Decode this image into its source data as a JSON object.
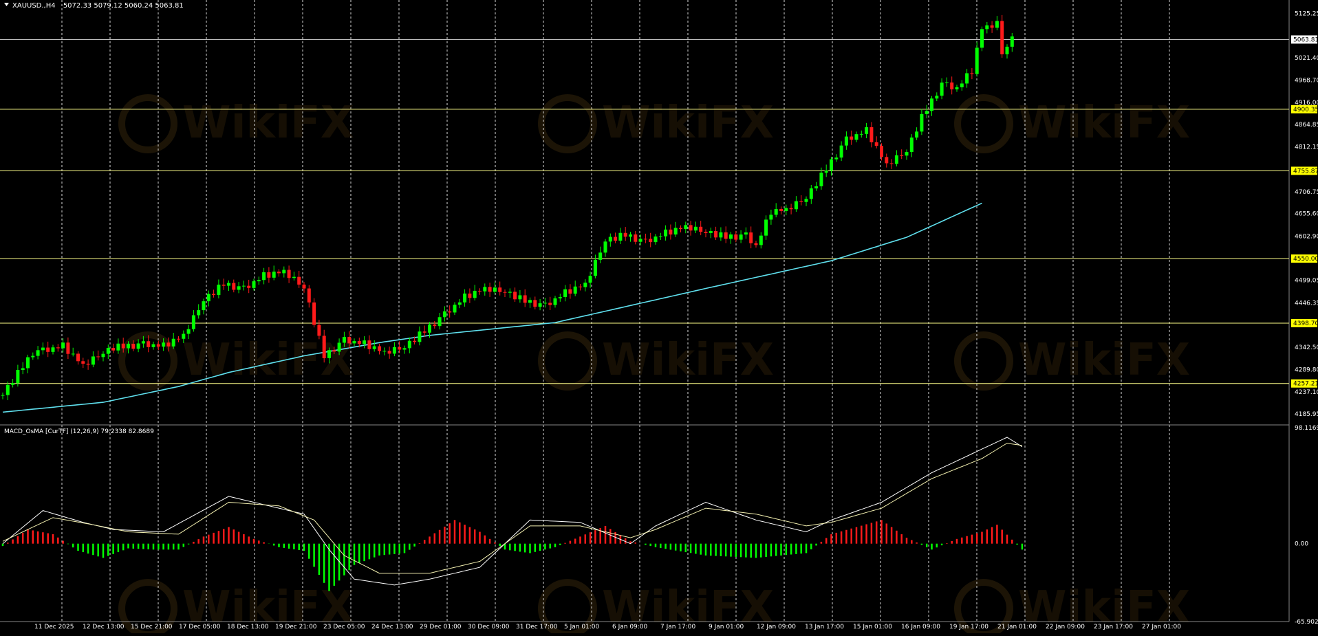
{
  "header": {
    "symbol": "XAUUSD.,H4",
    "ohlc": "5072.33 5079.12 5060.24 5063.81"
  },
  "indicator": {
    "label": "MACD_OsMA [CurTF] (12,26,9) 79.2338 82.8689"
  },
  "watermark_text": "WikiFX",
  "colors": {
    "background": "#000000",
    "bull": "#00ff00",
    "bear": "#ff1a1a",
    "ma": "#5fe0ee",
    "level": "#ffff8a",
    "level_label_bg": "#ffff00",
    "grid": "#d8d8d8",
    "macd_line": "#ffffff",
    "signal_line": "#f3f0b0"
  },
  "chart_data": [
    {
      "type": "candlestick",
      "symbol": "XAUUSD.",
      "timeframe": "H4",
      "last_price": 5063.81,
      "ylim": [
        4160,
        5150
      ],
      "y_ticks": [
        "5125.25",
        "5021.40",
        "4968.70",
        "4916.00",
        "4864.85",
        "4812.15",
        "4706.75",
        "4655.60",
        "4602.90",
        "4499.05",
        "4446.35",
        "4342.50",
        "4289.80",
        "4237.10",
        "4185.95"
      ],
      "price_label": "5063.81",
      "levels": [
        "4900.35",
        "4755.87",
        "4550.00",
        "4398.70",
        "4257.21"
      ],
      "x_labels": [
        "11 Dec 2025",
        "12 Dec 13:00",
        "15 Dec 21:00",
        "17 Dec 05:00",
        "18 Dec 13:00",
        "19 Dec 21:00",
        "23 Dec 05:00",
        "24 Dec 13:00",
        "29 Dec 01:00",
        "30 Dec 09:00",
        "31 Dec 17:00",
        "5 Jan 01:00",
        "6 Jan 09:00",
        "7 Jan 17:00",
        "9 Jan 01:00",
        "12 Jan 09:00",
        "13 Jan 17:00",
        "15 Jan 01:00",
        "16 Jan 09:00",
        "19 Jan 17:00",
        "21 Jan 01:00",
        "22 Jan 09:00",
        "23 Jan 17:00",
        "27 Jan 01:00"
      ],
      "ma_points": [
        [
          0,
          4190
        ],
        [
          20,
          4213
        ],
        [
          35,
          4250
        ],
        [
          45,
          4283
        ],
        [
          60,
          4322
        ],
        [
          75,
          4353
        ],
        [
          85,
          4370
        ],
        [
          110,
          4400
        ],
        [
          140,
          4480
        ],
        [
          165,
          4545
        ],
        [
          180,
          4600
        ],
        [
          195,
          4680
        ]
      ],
      "close_path": [
        [
          0,
          4230
        ],
        [
          6,
          4330
        ],
        [
          12,
          4345
        ],
        [
          16,
          4300
        ],
        [
          22,
          4340
        ],
        [
          28,
          4350
        ],
        [
          32,
          4345
        ],
        [
          36,
          4370
        ],
        [
          40,
          4450
        ],
        [
          44,
          4490
        ],
        [
          48,
          4480
        ],
        [
          52,
          4510
        ],
        [
          56,
          4520
        ],
        [
          60,
          4480
        ],
        [
          64,
          4320
        ],
        [
          68,
          4360
        ],
        [
          72,
          4350
        ],
        [
          76,
          4330
        ],
        [
          80,
          4340
        ],
        [
          84,
          4380
        ],
        [
          88,
          4420
        ],
        [
          92,
          4460
        ],
        [
          96,
          4480
        ],
        [
          100,
          4470
        ],
        [
          104,
          4450
        ],
        [
          108,
          4440
        ],
        [
          112,
          4470
        ],
        [
          116,
          4490
        ],
        [
          120,
          4590
        ],
        [
          124,
          4605
        ],
        [
          128,
          4590
        ],
        [
          132,
          4610
        ],
        [
          136,
          4625
        ],
        [
          140,
          4610
        ],
        [
          144,
          4600
        ],
        [
          148,
          4605
        ],
        [
          150,
          4580
        ],
        [
          153,
          4660
        ],
        [
          156,
          4665
        ],
        [
          160,
          4690
        ],
        [
          164,
          4760
        ],
        [
          168,
          4830
        ],
        [
          172,
          4850
        ],
        [
          176,
          4770
        ],
        [
          180,
          4800
        ],
        [
          183,
          4880
        ],
        [
          187,
          4960
        ],
        [
          190,
          4950
        ],
        [
          193,
          4990
        ],
        [
          195,
          5090
        ],
        [
          198,
          5100
        ],
        [
          199,
          5030
        ],
        [
          201,
          5063.81
        ]
      ],
      "wiggle": [
        0,
        8,
        -6,
        10,
        -4,
        6,
        -9,
        3,
        7,
        -7,
        2,
        -3,
        9,
        -8,
        5,
        -2,
        4,
        -6,
        8,
        -1
      ],
      "num_candles": 202
    },
    {
      "type": "macd_osma",
      "label": "MACD_OsMA [CurTF] (12,26,9) 79.2338 82.8689",
      "params": [
        12,
        26,
        9
      ],
      "macd": 79.2338,
      "signal": 82.8689,
      "ylim": [
        -65.9029,
        98.1169
      ],
      "y_ticks": [
        "98.1169",
        "0.00",
        "-65.9029"
      ],
      "macd_path": [
        [
          0,
          0
        ],
        [
          8,
          28
        ],
        [
          16,
          18
        ],
        [
          22,
          12
        ],
        [
          32,
          10
        ],
        [
          45,
          40
        ],
        [
          55,
          30
        ],
        [
          60,
          25
        ],
        [
          65,
          -5
        ],
        [
          70,
          -30
        ],
        [
          78,
          -35
        ],
        [
          85,
          -30
        ],
        [
          95,
          -20
        ],
        [
          105,
          20
        ],
        [
          115,
          18
        ],
        [
          125,
          0
        ],
        [
          130,
          15
        ],
        [
          140,
          35
        ],
        [
          150,
          20
        ],
        [
          160,
          10
        ],
        [
          165,
          20
        ],
        [
          175,
          35
        ],
        [
          185,
          60
        ],
        [
          195,
          80
        ],
        [
          200,
          90
        ],
        [
          203,
          82
        ]
      ],
      "signal_path": [
        [
          0,
          2
        ],
        [
          10,
          22
        ],
        [
          18,
          16
        ],
        [
          25,
          10
        ],
        [
          35,
          8
        ],
        [
          45,
          35
        ],
        [
          55,
          32
        ],
        [
          62,
          20
        ],
        [
          68,
          -10
        ],
        [
          75,
          -25
        ],
        [
          85,
          -25
        ],
        [
          95,
          -15
        ],
        [
          105,
          15
        ],
        [
          115,
          15
        ],
        [
          125,
          5
        ],
        [
          130,
          12
        ],
        [
          140,
          30
        ],
        [
          150,
          25
        ],
        [
          160,
          15
        ],
        [
          165,
          18
        ],
        [
          175,
          30
        ],
        [
          185,
          55
        ],
        [
          195,
          72
        ],
        [
          200,
          85
        ],
        [
          203,
          83
        ]
      ],
      "hist_path": [
        [
          0,
          -2
        ],
        [
          5,
          12
        ],
        [
          10,
          8
        ],
        [
          15,
          -6
        ],
        [
          20,
          -12
        ],
        [
          25,
          -4
        ],
        [
          30,
          -5
        ],
        [
          35,
          -5
        ],
        [
          40,
          6
        ],
        [
          45,
          14
        ],
        [
          50,
          4
        ],
        [
          55,
          -3
        ],
        [
          60,
          -6
        ],
        [
          65,
          -40
        ],
        [
          70,
          -18
        ],
        [
          75,
          -10
        ],
        [
          80,
          -8
        ],
        [
          85,
          6
        ],
        [
          90,
          20
        ],
        [
          95,
          10
        ],
        [
          100,
          -5
        ],
        [
          105,
          -8
        ],
        [
          110,
          -3
        ],
        [
          115,
          6
        ],
        [
          120,
          15
        ],
        [
          125,
          2
        ],
        [
          130,
          -3
        ],
        [
          140,
          -10
        ],
        [
          150,
          -12
        ],
        [
          160,
          -8
        ],
        [
          165,
          8
        ],
        [
          170,
          14
        ],
        [
          175,
          20
        ],
        [
          180,
          5
        ],
        [
          185,
          -5
        ],
        [
          190,
          4
        ],
        [
          195,
          10
        ],
        [
          198,
          16
        ],
        [
          203,
          -5
        ]
      ]
    }
  ]
}
